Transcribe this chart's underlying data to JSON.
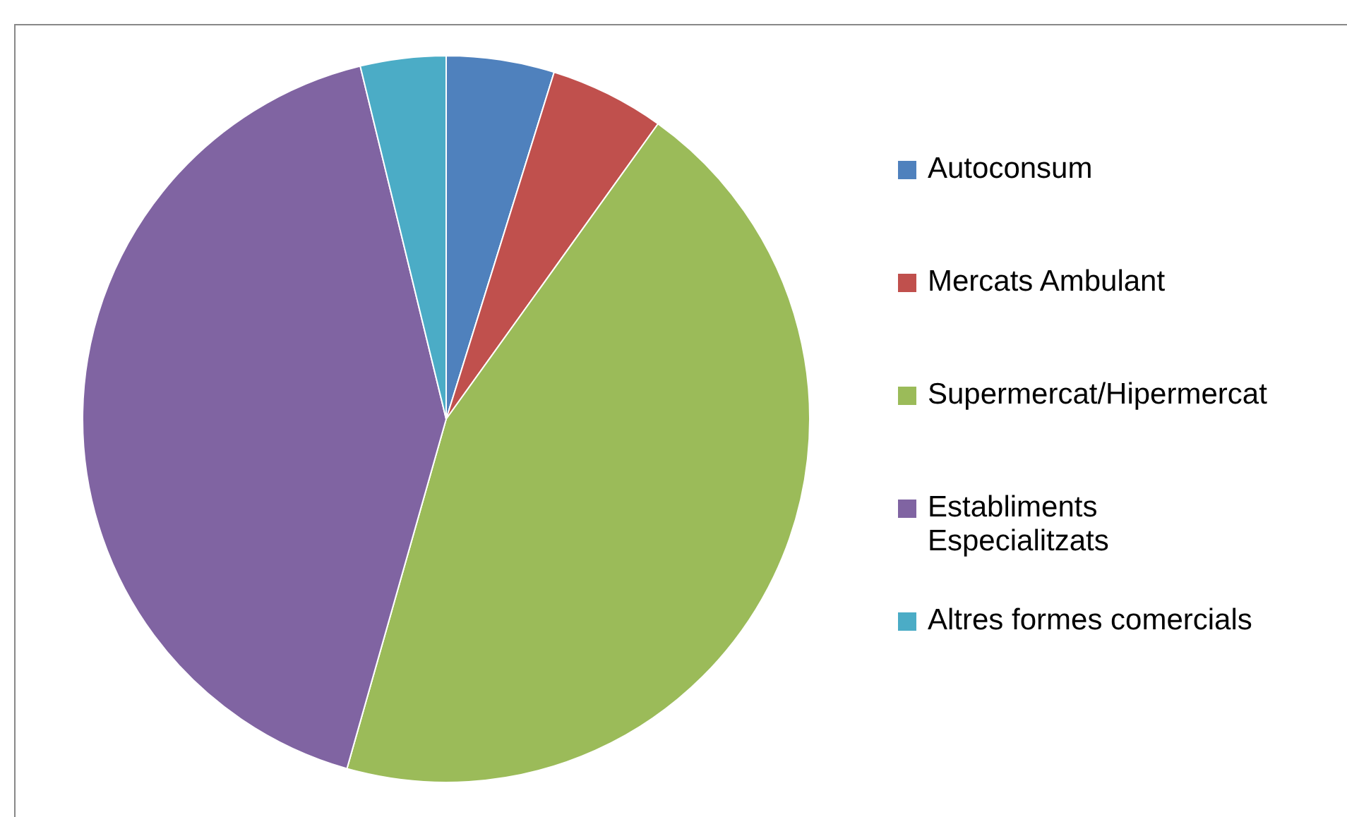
{
  "chart_data": {
    "type": "pie",
    "categories": [
      "Autoconsum",
      "Mercats Ambulant",
      "Supermercat/Hipermercat",
      "Establiments Especialitzats",
      "Altres formes comercials"
    ],
    "values": [
      4.8,
      5.1,
      44.5,
      41.8,
      3.8
    ],
    "colors": [
      "#4f81bd",
      "#c0504d",
      "#9bbb59",
      "#8064a2",
      "#4bacc6"
    ],
    "legend": "right"
  }
}
